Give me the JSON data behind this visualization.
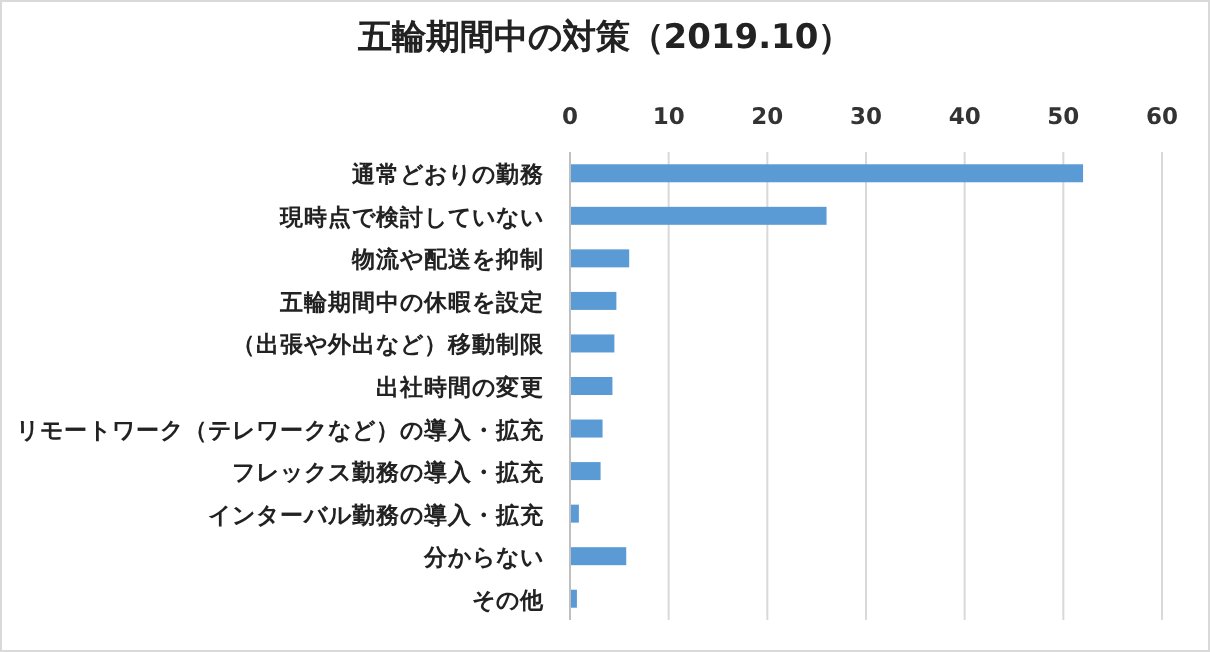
{
  "chart_data": {
    "type": "bar",
    "orientation": "horizontal",
    "title": "五輪期間中の対策（2019.10）",
    "categories": [
      "通常どおりの勤務",
      "現時点で検討していない",
      "物流や配送を抑制",
      "五輪期間中の休暇を設定",
      "（出張や外出など）移動制限",
      "出社時間の変更",
      "リモートワーク（テレワークなど）の導入・拡充",
      "フレックス勤務の導入・拡充",
      "インターバル勤務の導入・拡充",
      "分からない",
      "その他"
    ],
    "values": [
      52.0,
      26.0,
      6.0,
      4.7,
      4.5,
      4.3,
      3.3,
      3.1,
      0.9,
      5.7,
      0.7
    ],
    "color": "#5b9bd5",
    "xlim": [
      0,
      60
    ],
    "xticks": [
      0,
      10,
      20,
      30,
      40,
      50,
      60
    ],
    "grid": "x"
  }
}
